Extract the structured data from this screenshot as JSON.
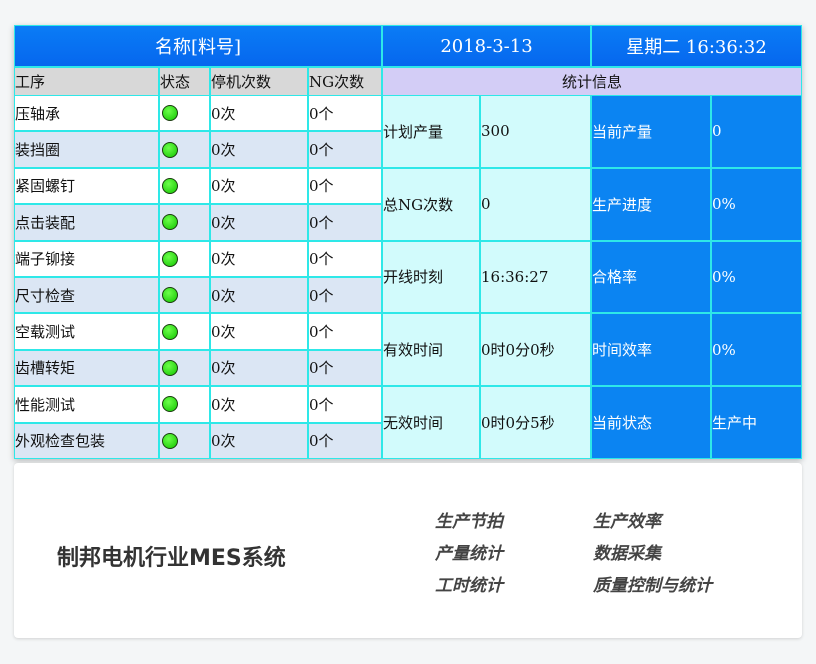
{
  "header": {
    "name": "名称[料号]",
    "date": "2018-3-13",
    "weekday_time": "星期二  16:36:32"
  },
  "columns": [
    "工序",
    "状态",
    "停机次数",
    "NG次数"
  ],
  "stats_title": "统计信息",
  "processes": [
    {
      "name": "压轴承",
      "status": "green",
      "stops": "0次",
      "ng": "0个"
    },
    {
      "name": "装挡圈",
      "status": "green",
      "stops": "0次",
      "ng": "0个"
    },
    {
      "name": "紧固螺钉",
      "status": "green",
      "stops": "0次",
      "ng": "0个"
    },
    {
      "name": "点击装配",
      "status": "green",
      "stops": "0次",
      "ng": "0个"
    },
    {
      "name": "端子铆接",
      "status": "green",
      "stops": "0次",
      "ng": "0个"
    },
    {
      "name": "尺寸检查",
      "status": "green",
      "stops": "0次",
      "ng": "0个"
    },
    {
      "name": "空载测试",
      "status": "green",
      "stops": "0次",
      "ng": "0个"
    },
    {
      "name": "齿槽转矩",
      "status": "green",
      "stops": "0次",
      "ng": "0个"
    },
    {
      "name": "性能测试",
      "status": "green",
      "stops": "0次",
      "ng": "0个"
    },
    {
      "name": "外观检查包装",
      "status": "green",
      "stops": "0次",
      "ng": "0个"
    }
  ],
  "stats": [
    {
      "l1": "计划产量",
      "v1": "300",
      "l2": "当前产量",
      "v2": "0"
    },
    {
      "l1": "总NG次数",
      "v1": "0",
      "l2": "生产进度",
      "v2": "0%"
    },
    {
      "l1": "开线时刻",
      "v1": "16:36:27",
      "l2": "合格率",
      "v2": "0%"
    },
    {
      "l1": "有效时间",
      "v1": "0时0分0秒",
      "l2": "时间效率",
      "v2": "0%"
    },
    {
      "l1": "无效时间",
      "v1": "0时0分5秒",
      "l2": "当前状态",
      "v2": "生产中"
    }
  ],
  "caption": {
    "title": "制邦电机行业MES系统",
    "features": [
      "生产节拍",
      "生产效率",
      "产量统计",
      "数据采集",
      "工时统计",
      "质量控制与统计"
    ]
  },
  "colors": {
    "header_blue": "#0a7cf6",
    "status_green": "#12c400",
    "grid_cyan": "#2ee8e8"
  }
}
